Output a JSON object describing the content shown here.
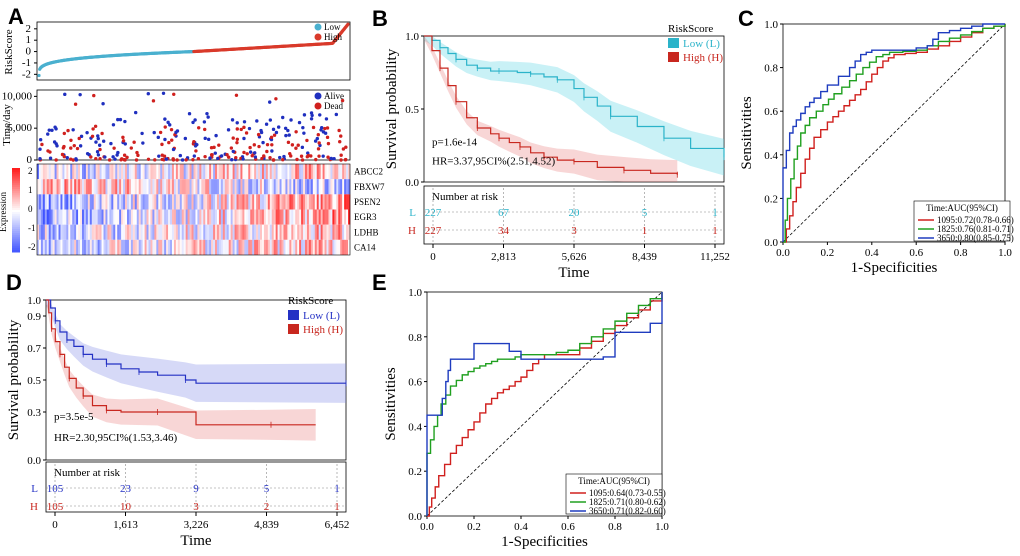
{
  "panel_labels": [
    "A",
    "B",
    "C",
    "D",
    "E"
  ],
  "colors": {
    "low": "#4ab0cf",
    "high": "#d93a2b",
    "alive": "#1f2fbf",
    "dead": "#d0201e",
    "B_low": "#2bb3c9",
    "B_high": "#c8271f",
    "D_low": "#2431c4",
    "D_high": "#c8271f",
    "roc_1095": "#d0201e",
    "roc_1825": "#20a020",
    "roc_3650": "#1f3cbf"
  },
  "chart_data": [
    {
      "id": "A_riskscore",
      "type": "scatter",
      "title": "",
      "ylabel": "RiskScore",
      "ylim": [
        -2.5,
        2.6
      ],
      "yticks": [
        "2",
        "1",
        "0",
        "-1",
        "-2"
      ],
      "legend": [
        "Low",
        "High"
      ],
      "n": 454,
      "values_low_min": -2.1,
      "values_split": 0.0,
      "values_high_max": 2.4
    },
    {
      "id": "A_survival_time",
      "type": "scatter",
      "ylabel": "Time/day",
      "yticks": [
        "10,000",
        "5,000",
        "0"
      ],
      "ylim": [
        0,
        11000
      ],
      "legend": [
        "Alive",
        "Dead"
      ]
    },
    {
      "id": "A_heatmap",
      "type": "heatmap",
      "genes": [
        "ABCC2",
        "FBXW7",
        "PSEN2",
        "EGR3",
        "LDHB",
        "CA14"
      ],
      "colorbar_label": "Expression",
      "colorbar_ticks": [
        "2",
        "1",
        "0",
        "-1",
        "-2"
      ]
    },
    {
      "id": "B_km",
      "type": "line",
      "xlabel": "Time",
      "ylabel": "Survival probability",
      "xticks": [
        "0",
        "2,813",
        "5,626",
        "8,439",
        "11,252"
      ],
      "xlim": [
        0,
        11252
      ],
      "yticks": [
        "1.0",
        "0.5",
        "0.0"
      ],
      "ylim": [
        0,
        1
      ],
      "legend_title": "RiskScore",
      "legend": [
        "Low (L)",
        "High (H)"
      ],
      "pvalue": "p=1.6e-14",
      "hr": "HR=3.37,95CI%(2.51,4.52)",
      "series": [
        {
          "name": "Low (L)",
          "x": [
            0,
            300,
            600,
            900,
            1200,
            1600,
            2000,
            2500,
            2813,
            3500,
            4000,
            4500,
            5000,
            5626,
            6000,
            6500,
            7000,
            8000,
            9000,
            10000,
            11252
          ],
          "y": [
            1.0,
            0.97,
            0.92,
            0.88,
            0.84,
            0.8,
            0.78,
            0.76,
            0.76,
            0.75,
            0.74,
            0.72,
            0.7,
            0.64,
            0.58,
            0.52,
            0.45,
            0.38,
            0.3,
            0.23,
            0.17
          ]
        },
        {
          "name": "High (H)",
          "x": [
            0,
            300,
            600,
            900,
            1200,
            1600,
            2000,
            2500,
            2813,
            3200,
            3600,
            4000,
            4500,
            5000,
            5626,
            6500,
            7500,
            8500,
            9500
          ],
          "y": [
            1.0,
            0.9,
            0.78,
            0.66,
            0.55,
            0.44,
            0.37,
            0.33,
            0.3,
            0.27,
            0.24,
            0.2,
            0.17,
            0.15,
            0.14,
            0.1,
            0.08,
            0.06,
            0.05
          ]
        }
      ],
      "risk_table": {
        "title": "Number at risk",
        "rows": [
          {
            "label": "L",
            "values": [
              "227",
              "67",
              "20",
              "5",
              "1"
            ]
          },
          {
            "label": "H",
            "values": [
              "227",
              "34",
              "3",
              "1",
              "1"
            ]
          }
        ]
      }
    },
    {
      "id": "C_roc",
      "type": "line",
      "xlabel": "1-Specificities",
      "ylabel": "Sensitivities",
      "ticks": [
        "0.0",
        "0.2",
        "0.4",
        "0.6",
        "0.8",
        "1.0"
      ],
      "xlim": [
        0,
        1
      ],
      "ylim": [
        0,
        1
      ],
      "legend_title": "Time:AUC(95%CI)",
      "series": [
        {
          "name": "1095:0.72(0.78-0.66)",
          "x": [
            0,
            0.03,
            0.06,
            0.1,
            0.14,
            0.2,
            0.25,
            0.3,
            0.35,
            0.4,
            0.45,
            0.5,
            0.6,
            0.7,
            0.8,
            0.9,
            1
          ],
          "y": [
            0,
            0.12,
            0.25,
            0.38,
            0.48,
            0.55,
            0.6,
            0.65,
            0.7,
            0.77,
            0.83,
            0.86,
            0.87,
            0.9,
            0.94,
            0.98,
            1
          ]
        },
        {
          "name": "1825:0.76(0.81-0.71)",
          "x": [
            0,
            0.02,
            0.05,
            0.08,
            0.12,
            0.18,
            0.23,
            0.3,
            0.36,
            0.42,
            0.48,
            0.6,
            0.7,
            0.8,
            0.9,
            1
          ],
          "y": [
            0,
            0.2,
            0.38,
            0.5,
            0.57,
            0.63,
            0.68,
            0.74,
            0.8,
            0.85,
            0.87,
            0.88,
            0.92,
            0.95,
            0.98,
            1
          ]
        },
        {
          "name": "3650:0.80(0.85-0.75)",
          "x": [
            0,
            0,
            0.03,
            0.06,
            0.1,
            0.14,
            0.2,
            0.3,
            0.35,
            0.4,
            0.45,
            0.55,
            0.65,
            0.7,
            0.8,
            0.9,
            1
          ],
          "y": [
            0,
            0.34,
            0.5,
            0.56,
            0.62,
            0.66,
            0.72,
            0.8,
            0.86,
            0.88,
            0.88,
            0.88,
            0.9,
            0.96,
            0.98,
            1,
            1
          ]
        }
      ]
    },
    {
      "id": "D_km",
      "type": "line",
      "xlabel": "Time",
      "ylabel": "Survival probability",
      "xticks": [
        "0",
        "1,613",
        "3,226",
        "4,839",
        "6,452"
      ],
      "xlim": [
        0,
        6452
      ],
      "yticks": [
        "1.0",
        "0.9",
        "0.7",
        "0.5",
        "0.3",
        "0.0"
      ],
      "ylim": [
        0,
        1
      ],
      "legend_title": "RiskScore",
      "legend": [
        "Low (L)",
        "High (H)"
      ],
      "pvalue": "p=3.5e-5",
      "hr": "HR=2.30,95CI%(1.53,3.46)",
      "series": [
        {
          "name": "Low (L)",
          "x": [
            0,
            100,
            200,
            300,
            450,
            600,
            800,
            1000,
            1300,
            1613,
            2000,
            2400,
            3000,
            3226,
            6452
          ],
          "y": [
            1.0,
            0.95,
            0.87,
            0.8,
            0.75,
            0.71,
            0.66,
            0.63,
            0.6,
            0.57,
            0.55,
            0.53,
            0.5,
            0.48,
            0.48
          ]
        },
        {
          "name": "High (H)",
          "x": [
            0,
            60,
            120,
            200,
            300,
            400,
            500,
            650,
            800,
            1000,
            1300,
            1613,
            2400,
            3226,
            4839,
            5800
          ],
          "y": [
            1.0,
            0.92,
            0.82,
            0.74,
            0.66,
            0.58,
            0.51,
            0.45,
            0.4,
            0.34,
            0.31,
            0.3,
            0.3,
            0.22,
            0.22,
            0.22
          ]
        }
      ],
      "risk_table": {
        "title": "Number at risk",
        "rows": [
          {
            "label": "L",
            "values": [
              "105",
              "23",
              "9",
              "5",
              "1"
            ]
          },
          {
            "label": "H",
            "values": [
              "105",
              "10",
              "3",
              "2",
              "1"
            ]
          }
        ]
      }
    },
    {
      "id": "E_roc",
      "type": "line",
      "xlabel": "1-Specificities",
      "ylabel": "Sensitivities",
      "ticks": [
        "0.0",
        "0.2",
        "0.4",
        "0.6",
        "0.8",
        "1.0"
      ],
      "xlim": [
        0,
        1
      ],
      "ylim": [
        0,
        1
      ],
      "legend_title": "Time:AUC(95%CI)",
      "series": [
        {
          "name": "1095:0.64(0.73-0.55)",
          "x": [
            0,
            0.02,
            0.05,
            0.1,
            0.15,
            0.2,
            0.25,
            0.3,
            0.35,
            0.4,
            0.45,
            0.5,
            0.55,
            0.6,
            0.7,
            0.8,
            0.9,
            1
          ],
          "y": [
            0,
            0.08,
            0.18,
            0.28,
            0.35,
            0.42,
            0.5,
            0.55,
            0.58,
            0.62,
            0.68,
            0.72,
            0.72,
            0.72,
            0.78,
            0.85,
            0.92,
            1
          ]
        },
        {
          "name": "1825:0.71(0.80-0.62)",
          "x": [
            0,
            0,
            0.03,
            0.06,
            0.1,
            0.15,
            0.2,
            0.25,
            0.3,
            0.35,
            0.4,
            0.5,
            0.6,
            0.7,
            0.8,
            0.9,
            1
          ],
          "y": [
            0,
            0.28,
            0.4,
            0.5,
            0.58,
            0.63,
            0.66,
            0.68,
            0.7,
            0.7,
            0.72,
            0.72,
            0.74,
            0.8,
            0.87,
            0.94,
            1
          ]
        },
        {
          "name": "3650:0.71(0.82-0.60)",
          "x": [
            0,
            0,
            0.05,
            0.08,
            0.1,
            0.2,
            0.2,
            0.3,
            0.4,
            0.5,
            0.6,
            0.7,
            0.8,
            0.8,
            0.9,
            1,
            1
          ],
          "y": [
            0,
            0.45,
            0.45,
            0.6,
            0.7,
            0.7,
            0.77,
            0.77,
            0.7,
            0.7,
            0.7,
            0.7,
            0.72,
            0.82,
            0.82,
            0.9,
            1
          ]
        }
      ]
    }
  ]
}
